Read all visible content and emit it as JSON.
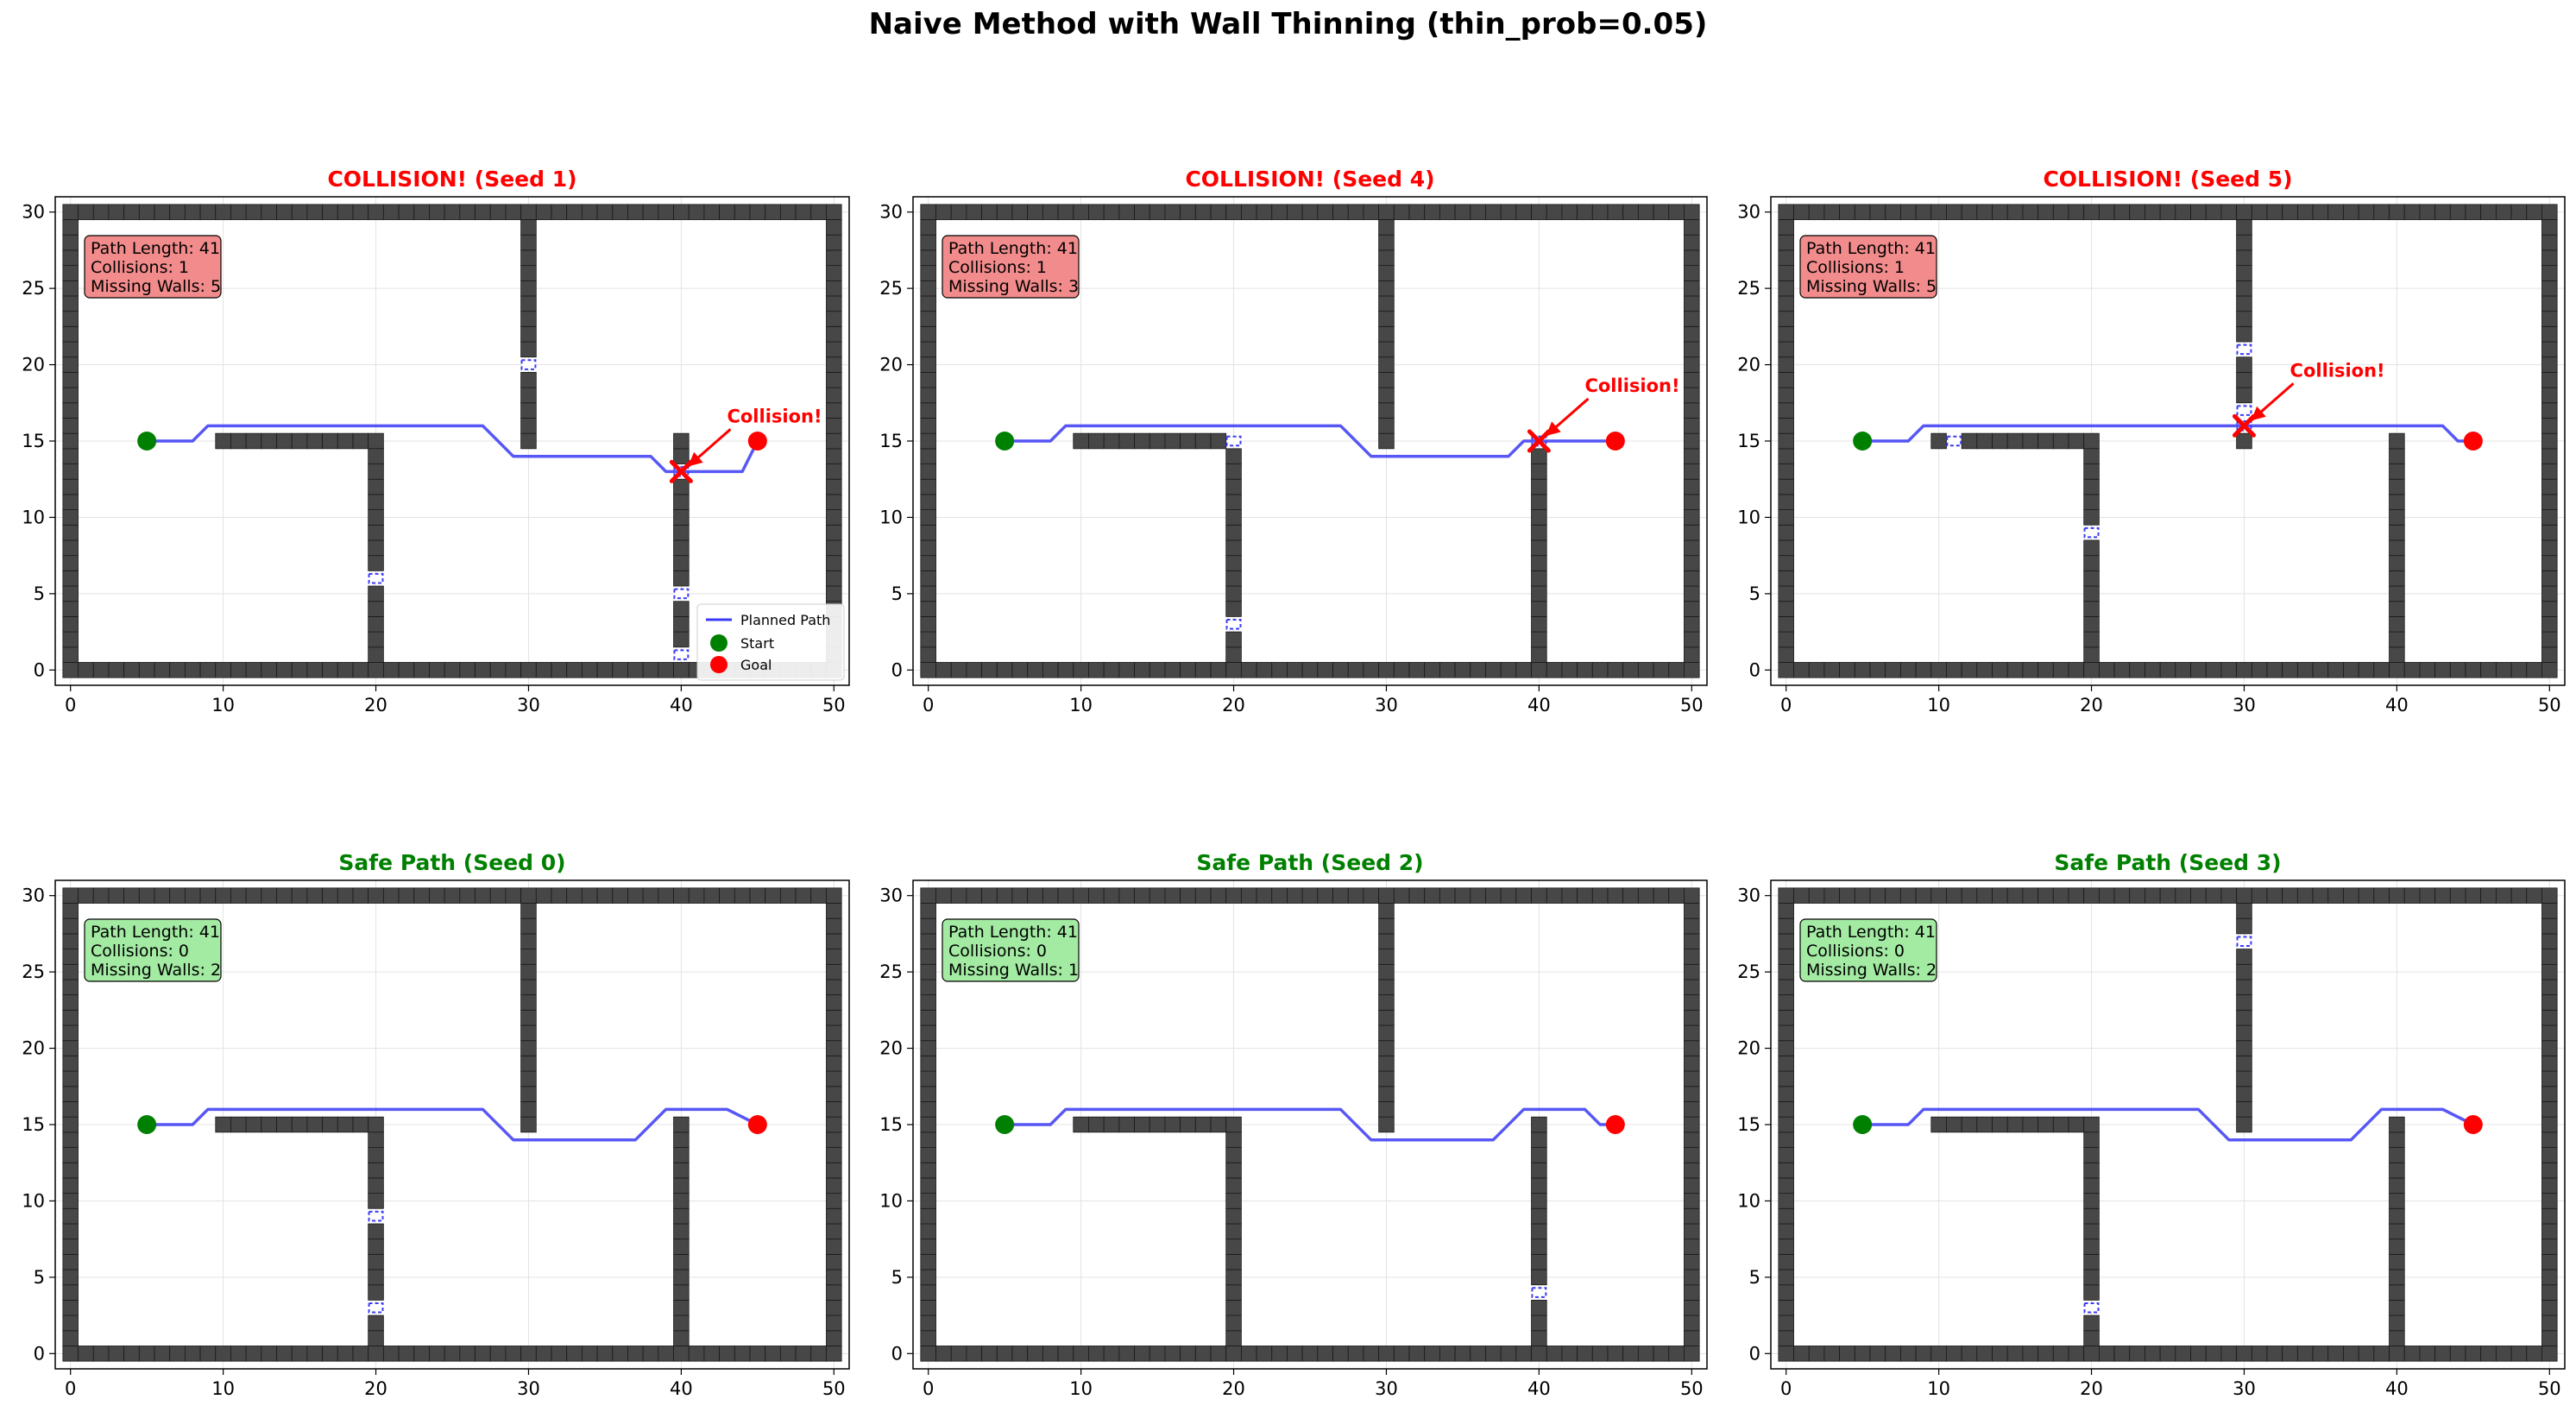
{
  "figure": {
    "title": "Naive Method with Wall Thinning (thin_prob=0.05)"
  },
  "colors": {
    "wall": "#474747",
    "wall_edge": "#1a1a1a",
    "path": "#3a3af5",
    "start": "#008000",
    "goal": "#ff0000",
    "collision": "#ff0000",
    "gap": "#ffffff",
    "gap_edge": "#3a3af5",
    "box_collision": "#f28b8b",
    "box_safe": "#a3eaa3",
    "title_collision": "#ff0000",
    "title_safe": "#008000"
  },
  "chart_data": [
    {
      "type": "line",
      "title": "COLLISION! (Seed 1)",
      "status": "collision",
      "info": [
        "Path Length: 41",
        "Collisions: 1",
        "Missing Walls: 5"
      ],
      "xlim": [
        -1,
        51
      ],
      "ylim": [
        -1,
        31
      ],
      "xticks": [
        0,
        10,
        20,
        30,
        40,
        50
      ],
      "yticks": [
        0,
        5,
        10,
        15,
        20,
        25,
        30
      ],
      "walls": {
        "border": [
          0,
          50,
          0,
          30
        ],
        "h": [
          [
            10,
            20,
            15
          ]
        ],
        "v": [
          [
            20,
            0,
            15
          ],
          [
            30,
            15,
            30
          ],
          [
            40,
            0,
            15
          ]
        ]
      },
      "missing_walls": [
        [
          30,
          20
        ],
        [
          20,
          6
        ],
        [
          40,
          5
        ],
        [
          40,
          1
        ],
        [
          40,
          13
        ]
      ],
      "path": {
        "x": [
          5,
          8,
          9,
          27,
          29,
          38,
          39,
          40,
          41,
          44,
          45
        ],
        "y": [
          15,
          15,
          16,
          16,
          14,
          14,
          13,
          13,
          13,
          13,
          15
        ]
      },
      "start": [
        5,
        15
      ],
      "goal": [
        45,
        15
      ],
      "collisions": [
        [
          40,
          13
        ]
      ],
      "collision_label": "Collision!",
      "legend": [
        "Planned Path",
        "Start",
        "Goal"
      ],
      "legend_loc": "lower right"
    },
    {
      "type": "line",
      "title": "COLLISION! (Seed 4)",
      "status": "collision",
      "info": [
        "Path Length: 41",
        "Collisions: 1",
        "Missing Walls: 3"
      ],
      "xlim": [
        -1,
        51
      ],
      "ylim": [
        -1,
        31
      ],
      "xticks": [
        0,
        10,
        20,
        30,
        40,
        50
      ],
      "yticks": [
        0,
        5,
        10,
        15,
        20,
        25,
        30
      ],
      "walls": {
        "border": [
          0,
          50,
          0,
          30
        ],
        "h": [
          [
            10,
            20,
            15
          ]
        ],
        "v": [
          [
            20,
            0,
            15
          ],
          [
            30,
            15,
            30
          ],
          [
            40,
            0,
            15
          ]
        ]
      },
      "missing_walls": [
        [
          20,
          15
        ],
        [
          20,
          3
        ],
        [
          40,
          15
        ]
      ],
      "path": {
        "x": [
          5,
          8,
          9,
          27,
          29,
          38,
          39,
          40,
          45
        ],
        "y": [
          15,
          15,
          16,
          16,
          14,
          14,
          15,
          15,
          15
        ]
      },
      "start": [
        5,
        15
      ],
      "goal": [
        45,
        15
      ],
      "collisions": [
        [
          40,
          15
        ]
      ],
      "collision_label": "Collision!",
      "legend": [],
      "legend_loc": ""
    },
    {
      "type": "line",
      "title": "COLLISION! (Seed 5)",
      "status": "collision",
      "info": [
        "Path Length: 41",
        "Collisions: 1",
        "Missing Walls: 5"
      ],
      "xlim": [
        -1,
        51
      ],
      "ylim": [
        -1,
        31
      ],
      "xticks": [
        0,
        10,
        20,
        30,
        40,
        50
      ],
      "yticks": [
        0,
        5,
        10,
        15,
        20,
        25,
        30
      ],
      "walls": {
        "border": [
          0,
          50,
          0,
          30
        ],
        "h": [
          [
            10,
            20,
            15
          ]
        ],
        "v": [
          [
            20,
            0,
            15
          ],
          [
            30,
            15,
            30
          ],
          [
            40,
            0,
            15
          ]
        ]
      },
      "missing_walls": [
        [
          30,
          21
        ],
        [
          30,
          17
        ],
        [
          11,
          15
        ],
        [
          20,
          9
        ],
        [
          30,
          16
        ]
      ],
      "path": {
        "x": [
          5,
          8,
          9,
          43,
          44,
          45
        ],
        "y": [
          15,
          15,
          16,
          16,
          15,
          15
        ]
      },
      "start": [
        5,
        15
      ],
      "goal": [
        45,
        15
      ],
      "collisions": [
        [
          30,
          16
        ]
      ],
      "collision_label": "Collision!",
      "legend": [],
      "legend_loc": ""
    },
    {
      "type": "line",
      "title": "Safe Path (Seed 0)",
      "status": "safe",
      "info": [
        "Path Length: 41",
        "Collisions: 0",
        "Missing Walls: 2"
      ],
      "xlim": [
        -1,
        51
      ],
      "ylim": [
        -1,
        31
      ],
      "xticks": [
        0,
        10,
        20,
        30,
        40,
        50
      ],
      "yticks": [
        0,
        5,
        10,
        15,
        20,
        25,
        30
      ],
      "walls": {
        "border": [
          0,
          50,
          0,
          30
        ],
        "h": [
          [
            10,
            20,
            15
          ]
        ],
        "v": [
          [
            20,
            0,
            15
          ],
          [
            30,
            15,
            30
          ],
          [
            40,
            0,
            15
          ]
        ]
      },
      "missing_walls": [
        [
          20,
          9
        ],
        [
          20,
          3
        ]
      ],
      "path": {
        "x": [
          5,
          8,
          9,
          27,
          29,
          37,
          39,
          43,
          45
        ],
        "y": [
          15,
          15,
          16,
          16,
          14,
          14,
          16,
          16,
          15
        ]
      },
      "start": [
        5,
        15
      ],
      "goal": [
        45,
        15
      ],
      "collisions": [],
      "collision_label": "",
      "legend": [],
      "legend_loc": ""
    },
    {
      "type": "line",
      "title": "Safe Path (Seed 2)",
      "status": "safe",
      "info": [
        "Path Length: 41",
        "Collisions: 0",
        "Missing Walls: 1"
      ],
      "xlim": [
        -1,
        51
      ],
      "ylim": [
        -1,
        31
      ],
      "xticks": [
        0,
        10,
        20,
        30,
        40,
        50
      ],
      "yticks": [
        0,
        5,
        10,
        15,
        20,
        25,
        30
      ],
      "walls": {
        "border": [
          0,
          50,
          0,
          30
        ],
        "h": [
          [
            10,
            20,
            15
          ]
        ],
        "v": [
          [
            20,
            0,
            15
          ],
          [
            30,
            15,
            30
          ],
          [
            40,
            0,
            15
          ]
        ]
      },
      "missing_walls": [
        [
          40,
          4
        ]
      ],
      "path": {
        "x": [
          5,
          8,
          9,
          27,
          29,
          37,
          39,
          43,
          44,
          45
        ],
        "y": [
          15,
          15,
          16,
          16,
          14,
          14,
          16,
          16,
          15,
          15
        ]
      },
      "start": [
        5,
        15
      ],
      "goal": [
        45,
        15
      ],
      "collisions": [],
      "collision_label": "",
      "legend": [],
      "legend_loc": ""
    },
    {
      "type": "line",
      "title": "Safe Path (Seed 3)",
      "status": "safe",
      "info": [
        "Path Length: 41",
        "Collisions: 0",
        "Missing Walls: 2"
      ],
      "xlim": [
        -1,
        51
      ],
      "ylim": [
        -1,
        31
      ],
      "xticks": [
        0,
        10,
        20,
        30,
        40,
        50
      ],
      "yticks": [
        0,
        5,
        10,
        15,
        20,
        25,
        30
      ],
      "walls": {
        "border": [
          0,
          50,
          0,
          30
        ],
        "h": [
          [
            10,
            20,
            15
          ]
        ],
        "v": [
          [
            20,
            0,
            15
          ],
          [
            30,
            15,
            30
          ],
          [
            40,
            0,
            15
          ]
        ]
      },
      "missing_walls": [
        [
          30,
          27
        ],
        [
          20,
          3
        ]
      ],
      "path": {
        "x": [
          5,
          8,
          9,
          27,
          29,
          37,
          39,
          43,
          45
        ],
        "y": [
          15,
          15,
          16,
          16,
          14,
          14,
          16,
          16,
          15
        ]
      },
      "start": [
        5,
        15
      ],
      "goal": [
        45,
        15
      ],
      "collisions": [],
      "collision_label": "",
      "legend": [],
      "legend_loc": ""
    }
  ]
}
